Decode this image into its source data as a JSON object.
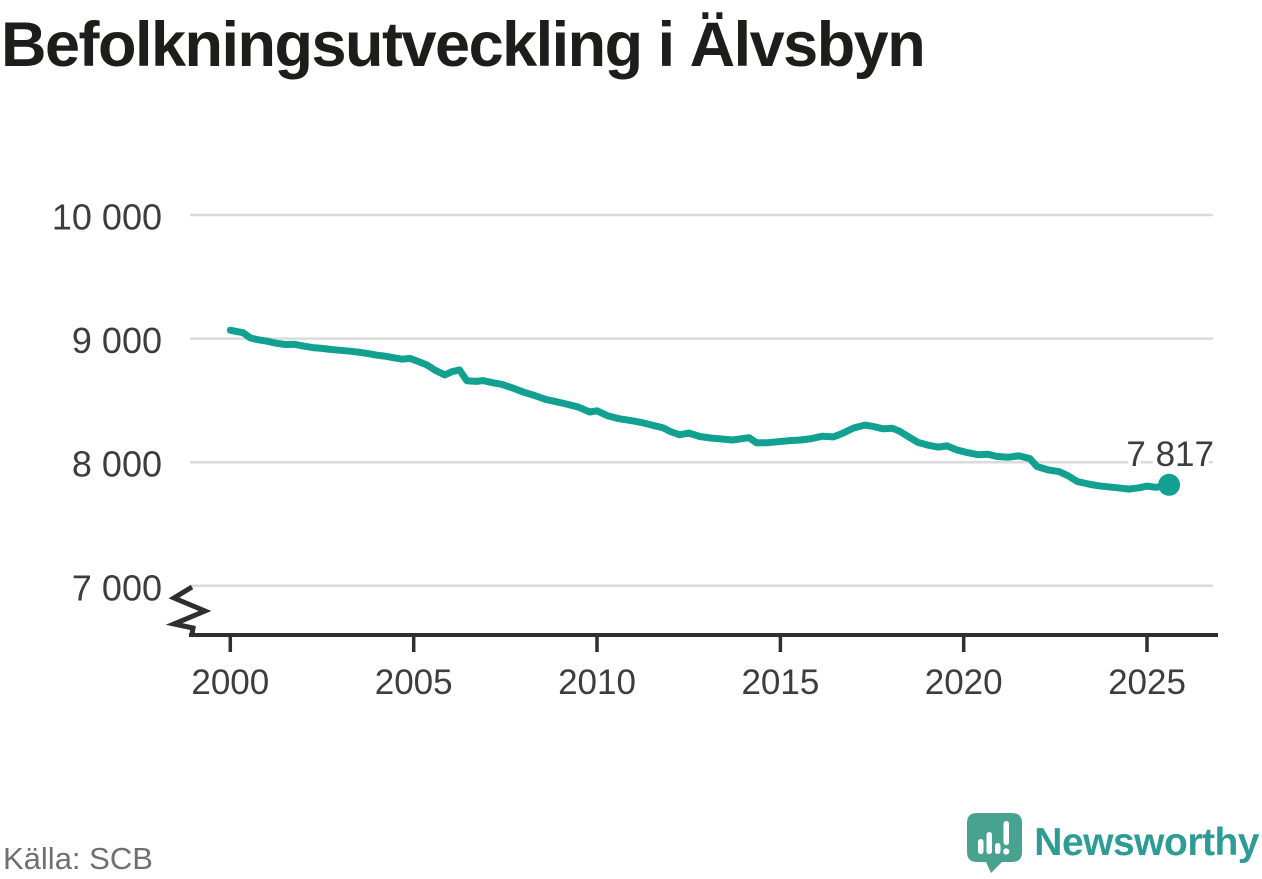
{
  "header": {
    "title": "Befolkningsutveckling i Älvsbyn"
  },
  "footer": {
    "source_label": "Källa: SCB",
    "brand": "Newsworthy",
    "brand_icon": "newsworthy-speech-bubble-bar-chart-icon"
  },
  "colors": {
    "background": "#FFFFFF",
    "title": "#1D1D1B",
    "line": "#12A191",
    "grid": "#DBDBDB",
    "axis": "#2F2F2F",
    "tick_label": "#3D3D3D",
    "end_label": "#1F1F1F",
    "source": "#707070",
    "logo_bg": "#48A290",
    "brand_teal": "#2E9B94"
  },
  "chart_data": {
    "type": "line",
    "title": "Befolkningsutveckling i Älvsbyn",
    "xlabel": "",
    "ylabel": "",
    "grid": "horizontal",
    "legend": "none",
    "y_axis_break": true,
    "ylim": [
      7000,
      10000
    ],
    "xlim": [
      2000,
      2025.6
    ],
    "x_ticks": [
      {
        "value": 2000,
        "label": "2000"
      },
      {
        "value": 2005,
        "label": "2005"
      },
      {
        "value": 2010,
        "label": "2010"
      },
      {
        "value": 2015,
        "label": "2015"
      },
      {
        "value": 2020,
        "label": "2020"
      },
      {
        "value": 2025,
        "label": "2025"
      }
    ],
    "y_ticks": [
      {
        "value": 7000,
        "label": "7 000"
      },
      {
        "value": 8000,
        "label": "8 000"
      },
      {
        "value": 9000,
        "label": "9 000"
      },
      {
        "value": 10000,
        "label": "10 000"
      }
    ],
    "end_label": "7 817",
    "latest": {
      "x": 2025.6,
      "value": 7817
    },
    "series": [
      {
        "name": "Befolkning",
        "color": "#12A191",
        "points": [
          [
            2000.0,
            9068
          ],
          [
            2000.2,
            9056
          ],
          [
            2000.35,
            9048
          ],
          [
            2000.55,
            9005
          ],
          [
            2000.75,
            8991
          ],
          [
            2001.0,
            8979
          ],
          [
            2001.25,
            8963
          ],
          [
            2001.5,
            8952
          ],
          [
            2001.75,
            8954
          ],
          [
            2002.0,
            8939
          ],
          [
            2002.25,
            8927
          ],
          [
            2002.5,
            8921
          ],
          [
            2002.75,
            8912
          ],
          [
            2003.0,
            8905
          ],
          [
            2003.3,
            8897
          ],
          [
            2003.55,
            8888
          ],
          [
            2003.8,
            8877
          ],
          [
            2004.0,
            8866
          ],
          [
            2004.25,
            8857
          ],
          [
            2004.5,
            8842
          ],
          [
            2004.7,
            8833
          ],
          [
            2004.9,
            8840
          ],
          [
            2005.1,
            8818
          ],
          [
            2005.35,
            8789
          ],
          [
            2005.6,
            8741
          ],
          [
            2005.85,
            8706
          ],
          [
            2006.05,
            8733
          ],
          [
            2006.25,
            8747
          ],
          [
            2006.45,
            8659
          ],
          [
            2006.7,
            8654
          ],
          [
            2006.9,
            8660
          ],
          [
            2007.15,
            8643
          ],
          [
            2007.4,
            8630
          ],
          [
            2007.7,
            8600
          ],
          [
            2008.0,
            8566
          ],
          [
            2008.3,
            8540
          ],
          [
            2008.6,
            8508
          ],
          [
            2008.9,
            8489
          ],
          [
            2009.2,
            8468
          ],
          [
            2009.5,
            8445
          ],
          [
            2009.8,
            8406
          ],
          [
            2010.0,
            8416
          ],
          [
            2010.3,
            8375
          ],
          [
            2010.6,
            8352
          ],
          [
            2010.9,
            8338
          ],
          [
            2011.2,
            8322
          ],
          [
            2011.5,
            8300
          ],
          [
            2011.8,
            8278
          ],
          [
            2012.0,
            8248
          ],
          [
            2012.25,
            8222
          ],
          [
            2012.5,
            8236
          ],
          [
            2012.8,
            8208
          ],
          [
            2013.1,
            8196
          ],
          [
            2013.4,
            8188
          ],
          [
            2013.7,
            8180
          ],
          [
            2013.95,
            8190
          ],
          [
            2014.15,
            8198
          ],
          [
            2014.35,
            8156
          ],
          [
            2014.65,
            8158
          ],
          [
            2014.95,
            8166
          ],
          [
            2015.25,
            8175
          ],
          [
            2015.55,
            8180
          ],
          [
            2015.85,
            8191
          ],
          [
            2016.15,
            8210
          ],
          [
            2016.45,
            8205
          ],
          [
            2016.7,
            8235
          ],
          [
            2017.0,
            8277
          ],
          [
            2017.3,
            8300
          ],
          [
            2017.55,
            8288
          ],
          [
            2017.8,
            8270
          ],
          [
            2018.05,
            8275
          ],
          [
            2018.25,
            8251
          ],
          [
            2018.5,
            8205
          ],
          [
            2018.75,
            8160
          ],
          [
            2019.0,
            8140
          ],
          [
            2019.3,
            8122
          ],
          [
            2019.55,
            8132
          ],
          [
            2019.8,
            8100
          ],
          [
            2020.1,
            8078
          ],
          [
            2020.4,
            8060
          ],
          [
            2020.65,
            8065
          ],
          [
            2020.9,
            8047
          ],
          [
            2021.2,
            8040
          ],
          [
            2021.5,
            8052
          ],
          [
            2021.8,
            8030
          ],
          [
            2022.0,
            7965
          ],
          [
            2022.3,
            7938
          ],
          [
            2022.6,
            7924
          ],
          [
            2022.85,
            7890
          ],
          [
            2023.1,
            7843
          ],
          [
            2023.4,
            7824
          ],
          [
            2023.65,
            7810
          ],
          [
            2023.9,
            7802
          ],
          [
            2024.2,
            7793
          ],
          [
            2024.5,
            7782
          ],
          [
            2024.8,
            7794
          ],
          [
            2025.0,
            7807
          ],
          [
            2025.25,
            7797
          ],
          [
            2025.6,
            7817
          ]
        ]
      }
    ]
  }
}
